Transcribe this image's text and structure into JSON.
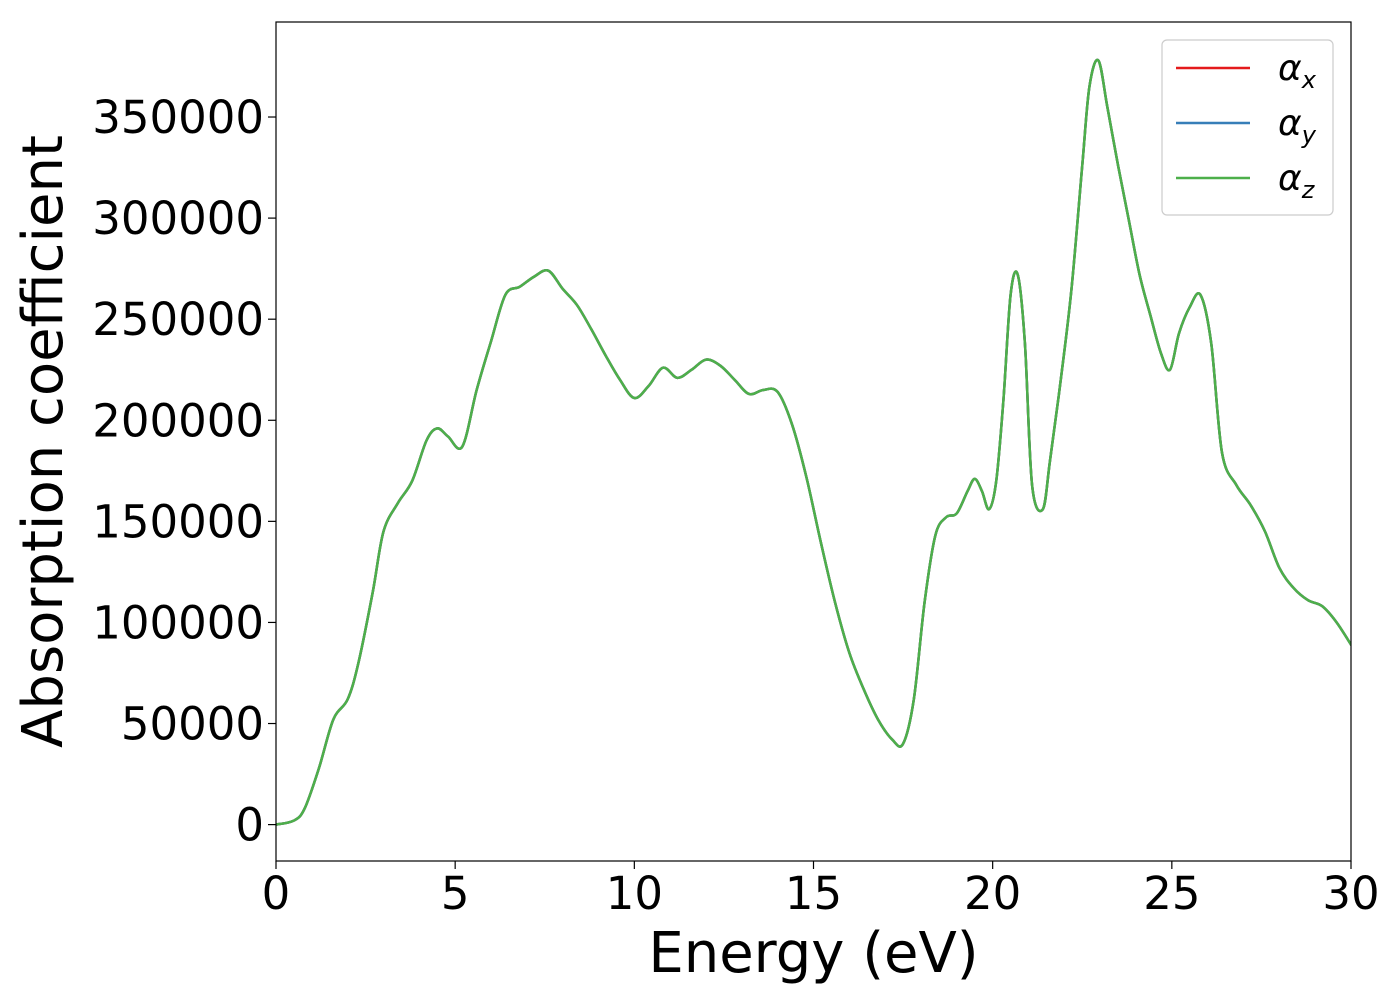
{
  "chart_data": {
    "type": "line",
    "title": "",
    "xlabel": "Energy (eV)",
    "ylabel": "Absorption coefficient",
    "xlim": [
      0,
      30
    ],
    "ylim": [
      -18000,
      397000
    ],
    "xticks": [
      0,
      5,
      10,
      15,
      20,
      25,
      30
    ],
    "yticks": [
      0,
      50000,
      100000,
      150000,
      200000,
      250000,
      300000,
      350000
    ],
    "grid": false,
    "legend_position": "top-right",
    "x": [
      0,
      0.5,
      0.8,
      1.2,
      1.6,
      2.0,
      2.3,
      2.7,
      3.0,
      3.4,
      3.8,
      4.2,
      4.5,
      4.8,
      5.2,
      5.6,
      6.0,
      6.4,
      6.8,
      7.2,
      7.6,
      8.0,
      8.4,
      8.8,
      9.2,
      9.6,
      10.0,
      10.4,
      10.8,
      11.2,
      11.6,
      12.0,
      12.4,
      12.8,
      13.2,
      13.6,
      14.0,
      14.4,
      14.8,
      15.2,
      15.6,
      16.0,
      16.4,
      16.8,
      17.2,
      17.5,
      17.8,
      18.1,
      18.4,
      18.7,
      19.0,
      19.3,
      19.5,
      19.7,
      19.9,
      20.1,
      20.3,
      20.5,
      20.7,
      20.9,
      21.1,
      21.4,
      21.6,
      21.9,
      22.2,
      22.5,
      22.7,
      22.95,
      23.2,
      23.5,
      23.8,
      24.1,
      24.4,
      24.7,
      24.95,
      25.2,
      25.5,
      25.8,
      26.1,
      26.4,
      26.8,
      27.2,
      27.6,
      28.0,
      28.4,
      28.8,
      29.2,
      29.6,
      30.0
    ],
    "series": [
      {
        "name": "αx",
        "color": "#e41a1c",
        "values": [
          0,
          2000,
          8000,
          28000,
          52000,
          62000,
          80000,
          115000,
          145000,
          159000,
          170000,
          190000,
          196000,
          192000,
          187000,
          215000,
          239000,
          262000,
          266000,
          271000,
          274000,
          265000,
          257000,
          245000,
          232000,
          220000,
          211000,
          217000,
          226000,
          221000,
          225000,
          230000,
          227000,
          220000,
          213000,
          215000,
          214000,
          198000,
          172000,
          140000,
          110000,
          85000,
          67000,
          52000,
          42000,
          40000,
          62000,
          110000,
          143000,
          152000,
          154000,
          165000,
          171000,
          165000,
          156000,
          170000,
          210000,
          262000,
          272000,
          238000,
          168000,
          156000,
          180000,
          220000,
          265000,
          326000,
          365000,
          378000,
          355000,
          326000,
          299000,
          272000,
          252000,
          233000,
          225000,
          243000,
          256000,
          262000,
          238000,
          184000,
          168000,
          158000,
          145000,
          127000,
          117000,
          111000,
          108000,
          100000,
          89000
        ]
      },
      {
        "name": "αy",
        "color": "#377eb8",
        "values": [
          0,
          2000,
          8000,
          28000,
          52000,
          62000,
          80000,
          115000,
          145000,
          159000,
          170000,
          190000,
          196000,
          192000,
          187000,
          215000,
          239000,
          262000,
          266000,
          271000,
          274000,
          265000,
          257000,
          245000,
          232000,
          220000,
          211000,
          217000,
          226000,
          221000,
          225000,
          230000,
          227000,
          220000,
          213000,
          215000,
          214000,
          198000,
          172000,
          140000,
          110000,
          85000,
          67000,
          52000,
          42000,
          40000,
          62000,
          110000,
          143000,
          152000,
          154000,
          165000,
          171000,
          165000,
          156000,
          170000,
          210000,
          262000,
          272000,
          238000,
          168000,
          156000,
          180000,
          220000,
          265000,
          326000,
          365000,
          378000,
          355000,
          326000,
          299000,
          272000,
          252000,
          233000,
          225000,
          243000,
          256000,
          262000,
          238000,
          184000,
          168000,
          158000,
          145000,
          127000,
          117000,
          111000,
          108000,
          100000,
          89000
        ]
      },
      {
        "name": "αz",
        "color": "#4daf4a",
        "values": [
          0,
          2000,
          8000,
          28000,
          52000,
          62000,
          80000,
          115000,
          145000,
          159000,
          170000,
          190000,
          196000,
          192000,
          187000,
          215000,
          239000,
          262000,
          266000,
          271000,
          274000,
          265000,
          257000,
          245000,
          232000,
          220000,
          211000,
          217000,
          226000,
          221000,
          225000,
          230000,
          227000,
          220000,
          213000,
          215000,
          214000,
          198000,
          172000,
          140000,
          110000,
          85000,
          67000,
          52000,
          42000,
          40000,
          62000,
          110000,
          143000,
          152000,
          154000,
          165000,
          171000,
          165000,
          156000,
          170000,
          210000,
          262000,
          272000,
          238000,
          168000,
          156000,
          180000,
          220000,
          265000,
          326000,
          365000,
          378000,
          355000,
          326000,
          299000,
          272000,
          252000,
          233000,
          225000,
          243000,
          256000,
          262000,
          238000,
          184000,
          168000,
          158000,
          145000,
          127000,
          117000,
          111000,
          108000,
          100000,
          89000
        ]
      }
    ],
    "legend": [
      {
        "base": "α",
        "sub": "x",
        "color": "#e41a1c"
      },
      {
        "base": "α",
        "sub": "y",
        "color": "#377eb8"
      },
      {
        "base": "α",
        "sub": "z",
        "color": "#4daf4a"
      }
    ]
  }
}
